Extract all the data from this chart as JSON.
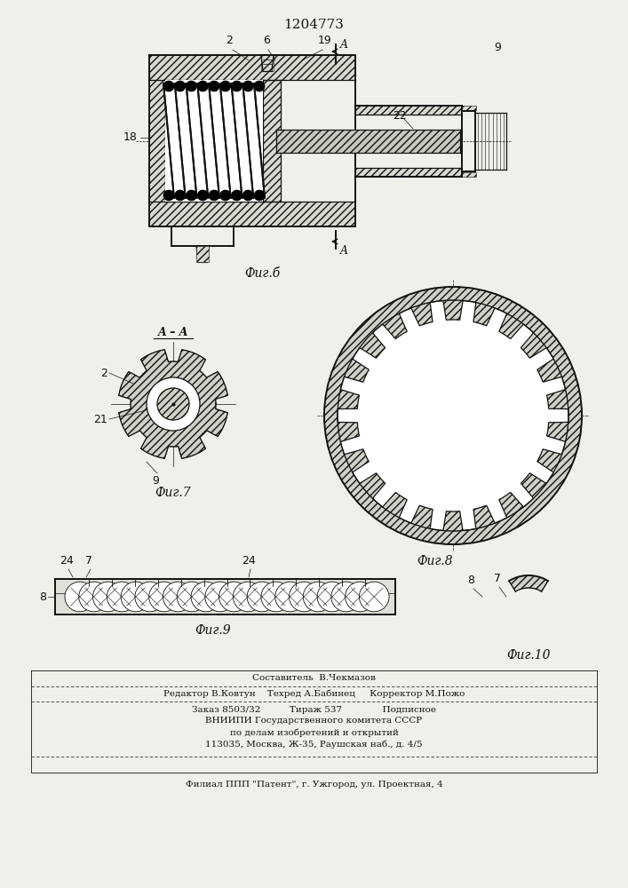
{
  "patent_number": "1204773",
  "bg": "#f0f0ea",
  "lc": "#111111",
  "fig6_label": "Фиг.б",
  "fig7_label": "Фиг.7",
  "fig8_label": "Фиг.8",
  "fig9_label": "Фиг.9",
  "fig10_label": "Фиг.10",
  "aa_label": "A – A",
  "lbl_2": "2",
  "lbl_6": "6",
  "lbl_9": "9",
  "lbl_18": "18",
  "lbl_19": "19",
  "lbl_21": "21",
  "lbl_22": "22",
  "lbl_7": "7",
  "lbl_8": "8",
  "lbl_24a": "24",
  "lbl_24b": "24",
  "foot1": "Составитель  В.Чекмазов",
  "foot2l": "Редактор В.Ковтун",
  "foot2m": "Техред А.Бабинец",
  "foot2r": "Корректор М.Пожо",
  "foot3l": "Заказ 8503/32",
  "foot3m": "Тираж 537",
  "foot3r": "Подписное",
  "foot4": "ВНИИПИ Государственного комитета СССР",
  "foot5": "по делам изобретений и открытий",
  "foot6": "113035, Москва, Ж-35, Раушская наб., д. 4/5",
  "foot7": "Филиал ППП \"Патент\", г. Ужгород, ул. Проектная, 4"
}
